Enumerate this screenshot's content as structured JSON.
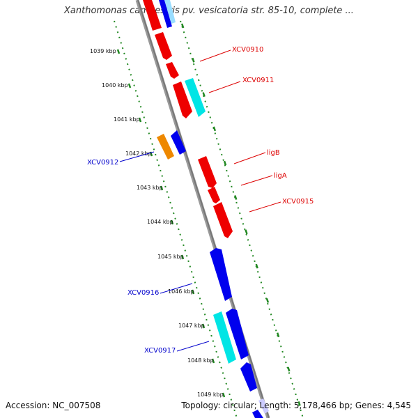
{
  "title": "Xanthomonas campestris pv. vesicatoria str. 85-10, complete ...",
  "footer": {
    "accession": "Accession: NC_007508",
    "summary": "Topology: circular; Length: 5,178,466 bp; Genes: 4,545"
  },
  "colors": {
    "forward_strand": "#ee0000",
    "reverse_strand": "#0000ee",
    "rna": "#00e5e5",
    "other": "#ee8800",
    "backbone": "#888888",
    "tick": "#228822",
    "label_forward": "#dd0000",
    "label_reverse": "#0000cc"
  },
  "kbp_labels": [
    "1039 kbp",
    "1040 kbp",
    "1041 kbp",
    "1042 kbp",
    "1043 kbp",
    "1044 kbp",
    "1045 kbp",
    "1046 kbp",
    "1047 kbp",
    "1048 kbp",
    "1049 kbp"
  ],
  "gene_labels": {
    "xcv0910": "XCV0910",
    "xcv0911": "XCV0911",
    "ligB": "ligB",
    "ligA": "ligA",
    "xcv0915": "XCV0915",
    "xcv0912": "XCV0912",
    "xcv0916": "XCV0916",
    "xcv0917": "XCV0917"
  }
}
